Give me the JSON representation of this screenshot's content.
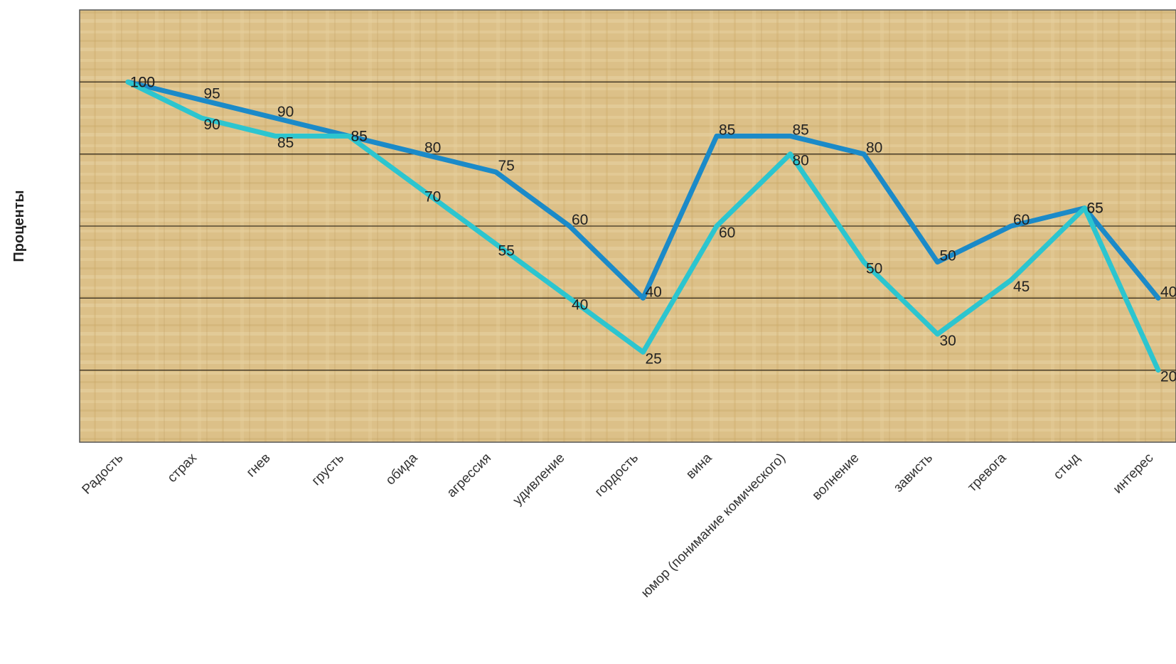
{
  "chart_data": {
    "type": "line",
    "ylabel": "Проценты",
    "xlabel": "",
    "title": "",
    "ylim": [
      0,
      120
    ],
    "y_gridlines": [
      20,
      40,
      60,
      80,
      100,
      120
    ],
    "categories": [
      "Радость",
      "страх",
      "гнев",
      "грусть",
      "обида",
      "агрессия",
      "удивление",
      "гордость",
      "вина",
      "юмор (понимание комического)",
      "волнение",
      "зависть",
      "тревога",
      "стыд",
      "интерес"
    ],
    "series": [
      {
        "color": "#1b8ac8",
        "values": [
          100,
          95,
          90,
          85,
          80,
          75,
          60,
          40,
          85,
          85,
          80,
          50,
          60,
          65,
          40
        ]
      },
      {
        "color": "#2cc5cf",
        "values": [
          100,
          90,
          85,
          85,
          70,
          55,
          40,
          25,
          60,
          80,
          50,
          30,
          45,
          65,
          20
        ]
      }
    ],
    "grid": true,
    "legend": "none"
  },
  "colors": {
    "plot_background": "#dcc088",
    "gridline": "#3a3020",
    "text": "#222222"
  }
}
